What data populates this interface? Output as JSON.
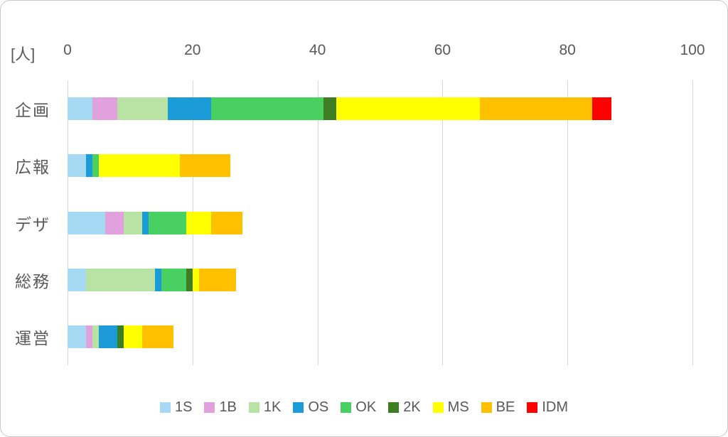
{
  "chart": {
    "unit_label": "[人]",
    "x_ticks": [
      0,
      20,
      40,
      60,
      80,
      100
    ],
    "grid_color": "#d9d9d9",
    "text_color": "#595959"
  },
  "chart_data": {
    "type": "bar",
    "orientation": "horizontal",
    "stacked": true,
    "title": "",
    "xlabel": "[人]",
    "ylabel": "",
    "xlim": [
      0,
      100
    ],
    "grid": true,
    "legend_position": "bottom",
    "categories": [
      "企画",
      "広報",
      "デザ",
      "総務",
      "運営"
    ],
    "series": [
      {
        "name": "1S",
        "color": "#a6d9f3",
        "values": [
          4,
          3,
          6,
          3,
          3
        ]
      },
      {
        "name": "1B",
        "color": "#e0a1dc",
        "values": [
          4,
          0,
          3,
          0,
          1
        ]
      },
      {
        "name": "1K",
        "color": "#b9e3a5",
        "values": [
          8,
          0,
          3,
          11,
          1
        ]
      },
      {
        "name": "OS",
        "color": "#1b9bd7",
        "values": [
          7,
          1,
          1,
          1,
          3
        ]
      },
      {
        "name": "OK",
        "color": "#48d161",
        "values": [
          18,
          1,
          6,
          4,
          0
        ]
      },
      {
        "name": "2K",
        "color": "#3e7e23",
        "values": [
          2,
          0,
          0,
          1,
          1
        ]
      },
      {
        "name": "MS",
        "color": "#ffff00",
        "values": [
          23,
          13,
          4,
          1,
          3
        ]
      },
      {
        "name": "BE",
        "color": "#ffc000",
        "values": [
          18,
          8,
          5,
          6,
          5
        ]
      },
      {
        "name": "IDM",
        "color": "#ff0000",
        "values": [
          3,
          0,
          0,
          0,
          0
        ]
      }
    ],
    "totals": [
      87,
      26,
      28,
      27,
      17
    ]
  }
}
